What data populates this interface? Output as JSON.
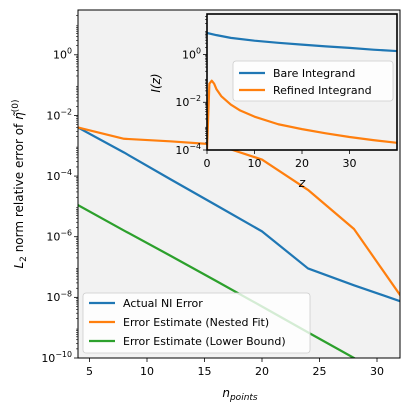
{
  "chart_data": [
    {
      "type": "line",
      "title": "",
      "xlabel": "n_points",
      "ylabel": "L_2 norm relative error of η̃^(0)",
      "xlim": [
        4,
        32
      ],
      "ylim": [
        1e-10,
        30
      ],
      "yscale": "log",
      "x_ticks": [
        5,
        10,
        15,
        20,
        25,
        30
      ],
      "y_ticks": [
        1e-10,
        1e-08,
        1e-06,
        0.0001,
        0.01,
        1
      ],
      "grid": false,
      "legend": "lower-left",
      "series": [
        {
          "name": "Actual NI Error",
          "color": "#1f77b4",
          "x": [
            4,
            8,
            12,
            16,
            20,
            24,
            28,
            32
          ],
          "y": [
            0.004,
            0.0006,
            8e-05,
            1.1e-05,
            1.5e-06,
            9e-08,
            2.5e-08,
            7.5e-09
          ]
        },
        {
          "name": "Error Estimate (Nested Fit)",
          "color": "#ff7f0e",
          "x": [
            4,
            8,
            12,
            16,
            20,
            24,
            28,
            32
          ],
          "y": [
            0.004,
            0.0017,
            0.0014,
            0.0011,
            0.00035,
            3.5e-05,
            1.8e-06,
            1.2e-08
          ]
        },
        {
          "name": "Error Estimate (Lower Bound)",
          "color": "#2ca02c",
          "x": [
            4,
            8,
            12,
            16,
            20,
            24,
            28,
            32
          ],
          "y": [
            1.1e-05,
            1.6e-06,
            2.4e-07,
            3.5e-08,
            5e-09,
            7e-10,
            1e-10,
            1.5e-11
          ]
        }
      ]
    },
    {
      "type": "line",
      "title": "",
      "xlabel": "z",
      "ylabel": "I(z)",
      "xlim": [
        0,
        40
      ],
      "ylim": [
        0.0001,
        50
      ],
      "yscale": "log",
      "x_ticks": [
        0,
        10,
        20,
        30
      ],
      "y_ticks": [
        0.0001,
        0.01,
        1
      ],
      "grid": false,
      "legend": "center-right",
      "series": [
        {
          "name": "Bare Integrand",
          "color": "#1f77b4",
          "x": [
            0,
            2,
            5,
            10,
            15,
            20,
            25,
            30,
            35,
            40
          ],
          "y": [
            8,
            6.5,
            5,
            3.8,
            3.1,
            2.6,
            2.2,
            1.9,
            1.6,
            1.4
          ]
        },
        {
          "name": "Refined Integrand",
          "color": "#ff7f0e",
          "x": [
            0,
            0.5,
            1,
            1.5,
            2,
            3,
            5,
            7,
            10,
            15,
            20,
            25,
            30,
            35,
            40
          ],
          "y": [
            0.0001,
            0.06,
            0.08,
            0.06,
            0.035,
            0.018,
            0.008,
            0.0045,
            0.0025,
            0.0012,
            0.00075,
            0.0005,
            0.00035,
            0.00026,
            0.0002
          ]
        }
      ]
    }
  ],
  "labels": {
    "main_x_tick_labels": [
      "5",
      "10",
      "15",
      "20",
      "25",
      "30"
    ],
    "main_y_tick_labels": [
      {
        "m": "10",
        "e": "−10"
      },
      {
        "m": "10",
        "e": "−8"
      },
      {
        "m": "10",
        "e": "−6"
      },
      {
        "m": "10",
        "e": "−4"
      },
      {
        "m": "10",
        "e": "−2"
      },
      {
        "m": "10",
        "e": "0"
      }
    ],
    "inset_x_tick_labels": [
      "0",
      "10",
      "20",
      "30"
    ],
    "inset_y_tick_labels": [
      {
        "m": "10",
        "e": "−4"
      },
      {
        "m": "10",
        "e": "−2"
      },
      {
        "m": "10",
        "e": "0"
      }
    ],
    "main_xlabel_base": "n",
    "main_xlabel_sub": "points",
    "main_ylabel_prefix": "L",
    "main_ylabel_sub": "2",
    "main_ylabel_text": " norm relative error of ",
    "main_ylabel_symbol": "η̃",
    "main_ylabel_sup": "(0)",
    "inset_xlabel": "z",
    "inset_ylabel": "I(z)"
  }
}
